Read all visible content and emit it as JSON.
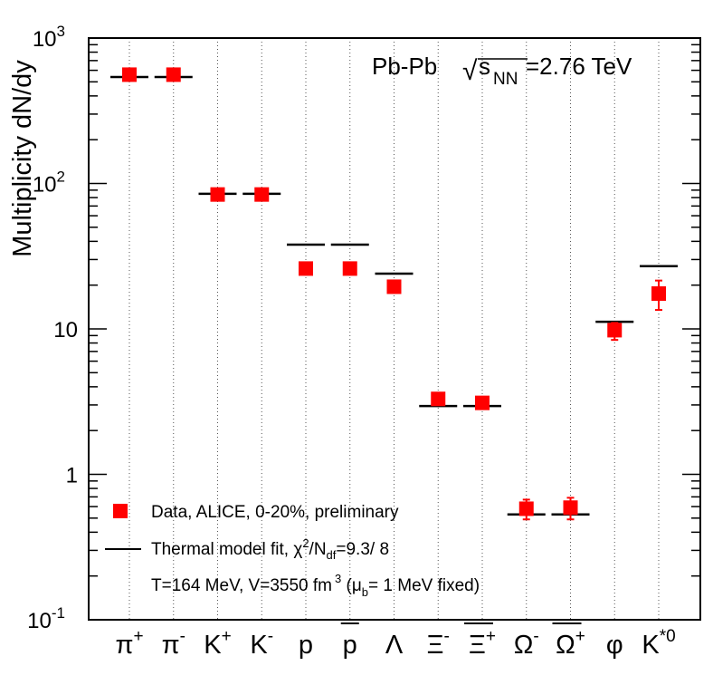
{
  "chart_data": {
    "type": "scatter",
    "yscale": "log",
    "ylim": [
      0.1,
      1000
    ],
    "ylabel": "Multiplicity dN/dy",
    "title_system": "Pb-Pb",
    "title_sqrt": "√",
    "title_s": "s",
    "title_sub": "NN",
    "title_energy": "=2.76 TeV",
    "y_ticks": [
      {
        "value": 1000,
        "base": "10",
        "exp": "3"
      },
      {
        "value": 100,
        "base": "10",
        "exp": "2"
      },
      {
        "value": 10,
        "base": "10",
        "exp": ""
      },
      {
        "value": 1,
        "base": "1",
        "exp": ""
      },
      {
        "value": 0.1,
        "base": "10",
        "exp": "-1"
      }
    ],
    "categories": [
      {
        "base": "π",
        "sup": "+",
        "bar": false
      },
      {
        "base": "π",
        "sup": "-",
        "bar": false
      },
      {
        "base": "K",
        "sup": "+",
        "bar": false
      },
      {
        "base": "K",
        "sup": "-",
        "bar": false
      },
      {
        "base": "p",
        "sup": "",
        "bar": false
      },
      {
        "base": "p",
        "sup": "",
        "bar": true
      },
      {
        "base": "Λ",
        "sup": "",
        "bar": false
      },
      {
        "base": "Ξ",
        "sup": "-",
        "bar": false
      },
      {
        "base": "Ξ",
        "sup": "+",
        "bar": true
      },
      {
        "base": "Ω",
        "sup": "-",
        "bar": false
      },
      {
        "base": "Ω",
        "sup": "+",
        "bar": true
      },
      {
        "base": "φ",
        "sup": "",
        "bar": false
      },
      {
        "base": "K",
        "sup": "*0",
        "bar": false
      }
    ],
    "series": [
      {
        "name": "Data, ALICE, 0-20%, preliminary",
        "color": "#ff0000",
        "values": [
          560,
          560,
          84,
          84,
          26,
          26,
          19.5,
          3.3,
          3.1,
          0.58,
          0.59,
          9.8,
          17.5
        ],
        "err_low": [
          0,
          0,
          0,
          0,
          0,
          0,
          0,
          0,
          0,
          0.09,
          0.1,
          1.4,
          4.0
        ],
        "err_high": [
          0,
          0,
          0,
          0,
          0,
          0,
          0,
          0,
          0,
          0.09,
          0.1,
          1.2,
          4.0
        ]
      },
      {
        "name": "Thermal model fit",
        "color": "#000000",
        "values": [
          540,
          540,
          85,
          85,
          38,
          38,
          24,
          2.95,
          2.95,
          0.53,
          0.53,
          11.2,
          27
        ]
      }
    ],
    "legend": {
      "data_label": "Data, ALICE, 0-20%, preliminary",
      "fit_prefix": "Thermal model fit, ",
      "chi": "χ",
      "chi_exp": "2",
      "fit_ndf": "/N",
      "fit_ndf_sub": "df",
      "fit_value": "=9.3/ 8",
      "params_prefix": "T=164 MeV, V=3550 fm",
      "params_exp": "3",
      "params_open": " (μ",
      "params_mu_sub": "b",
      "params_rest": "= 1 MeV fixed)"
    }
  }
}
